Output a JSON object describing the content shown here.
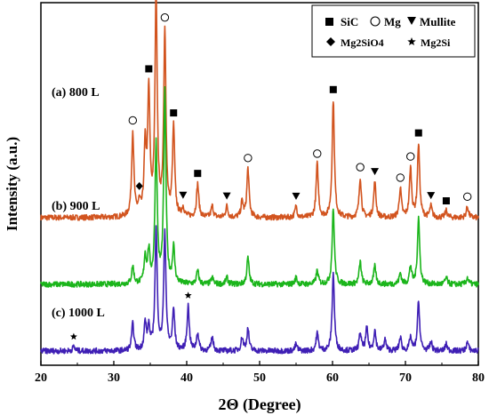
{
  "chart_data": {
    "type": "line",
    "title": "",
    "xlabel": "2Θ (Degree)",
    "ylabel": "Intensity (a.u.)",
    "xlim": [
      20,
      80
    ],
    "xticks": [
      20,
      30,
      40,
      50,
      60,
      70,
      80
    ],
    "y_ticks_shown": false,
    "grid": false,
    "legend": {
      "placement": "top-right",
      "entries": [
        {
          "symbol": "square",
          "name": "SiC"
        },
        {
          "symbol": "circle",
          "name": "Mg"
        },
        {
          "symbol": "triangle-down",
          "name": "Mullite"
        },
        {
          "symbol": "diamond",
          "name": "Mg2SiO4"
        },
        {
          "symbol": "star",
          "name": "Mg2Si"
        }
      ]
    },
    "series": [
      {
        "name": "(a) 800 L",
        "color": "#d2541f",
        "baseline": 0.6,
        "peaks": [
          {
            "x": 32.6,
            "h": 0.38
          },
          {
            "x": 33.5,
            "h": 0.05
          },
          {
            "x": 34.3,
            "h": 0.3
          },
          {
            "x": 34.8,
            "h": 0.55
          },
          {
            "x": 35.8,
            "h": 1.0
          },
          {
            "x": 37.0,
            "h": 0.82
          },
          {
            "x": 38.2,
            "h": 0.4
          },
          {
            "x": 39.5,
            "h": 0.04
          },
          {
            "x": 41.5,
            "h": 0.15
          },
          {
            "x": 43.5,
            "h": 0.05
          },
          {
            "x": 45.5,
            "h": 0.05
          },
          {
            "x": 47.6,
            "h": 0.07
          },
          {
            "x": 48.4,
            "h": 0.22
          },
          {
            "x": 55.0,
            "h": 0.05
          },
          {
            "x": 57.9,
            "h": 0.24
          },
          {
            "x": 60.1,
            "h": 0.53
          },
          {
            "x": 63.8,
            "h": 0.18
          },
          {
            "x": 65.8,
            "h": 0.16
          },
          {
            "x": 69.3,
            "h": 0.13
          },
          {
            "x": 70.7,
            "h": 0.22
          },
          {
            "x": 71.8,
            "h": 0.33
          },
          {
            "x": 73.5,
            "h": 0.05
          },
          {
            "x": 75.6,
            "h": 0.03
          },
          {
            "x": 78.5,
            "h": 0.05
          }
        ]
      },
      {
        "name": "(b) 900 L",
        "color": "#1bb51b",
        "baseline": 0.3,
        "peaks": [
          {
            "x": 32.6,
            "h": 0.08
          },
          {
            "x": 34.3,
            "h": 0.12
          },
          {
            "x": 34.8,
            "h": 0.14
          },
          {
            "x": 35.8,
            "h": 0.63
          },
          {
            "x": 37.0,
            "h": 0.86
          },
          {
            "x": 38.2,
            "h": 0.16
          },
          {
            "x": 41.5,
            "h": 0.06
          },
          {
            "x": 43.5,
            "h": 0.03
          },
          {
            "x": 45.5,
            "h": 0.03
          },
          {
            "x": 48.4,
            "h": 0.12
          },
          {
            "x": 55.0,
            "h": 0.03
          },
          {
            "x": 57.9,
            "h": 0.06
          },
          {
            "x": 60.1,
            "h": 0.34
          },
          {
            "x": 63.8,
            "h": 0.1
          },
          {
            "x": 65.8,
            "h": 0.08
          },
          {
            "x": 69.3,
            "h": 0.05
          },
          {
            "x": 70.7,
            "h": 0.08
          },
          {
            "x": 71.8,
            "h": 0.3
          },
          {
            "x": 75.6,
            "h": 0.03
          },
          {
            "x": 78.5,
            "h": 0.03
          }
        ]
      },
      {
        "name": "(c) 1000 L",
        "color": "#3f1fb5",
        "baseline": 0.0,
        "peaks": [
          {
            "x": 24.5,
            "h": 0.02
          },
          {
            "x": 32.6,
            "h": 0.12
          },
          {
            "x": 34.3,
            "h": 0.12
          },
          {
            "x": 34.8,
            "h": 0.1
          },
          {
            "x": 35.8,
            "h": 0.54
          },
          {
            "x": 37.0,
            "h": 0.53
          },
          {
            "x": 38.2,
            "h": 0.18
          },
          {
            "x": 40.2,
            "h": 0.2
          },
          {
            "x": 41.5,
            "h": 0.08
          },
          {
            "x": 43.5,
            "h": 0.06
          },
          {
            "x": 47.6,
            "h": 0.06
          },
          {
            "x": 48.4,
            "h": 0.1
          },
          {
            "x": 55.0,
            "h": 0.03
          },
          {
            "x": 57.9,
            "h": 0.08
          },
          {
            "x": 60.1,
            "h": 0.35
          },
          {
            "x": 63.8,
            "h": 0.08
          },
          {
            "x": 64.7,
            "h": 0.1
          },
          {
            "x": 65.8,
            "h": 0.09
          },
          {
            "x": 67.2,
            "h": 0.05
          },
          {
            "x": 69.3,
            "h": 0.06
          },
          {
            "x": 70.7,
            "h": 0.06
          },
          {
            "x": 71.8,
            "h": 0.22
          },
          {
            "x": 73.5,
            "h": 0.04
          },
          {
            "x": 75.6,
            "h": 0.03
          },
          {
            "x": 78.5,
            "h": 0.04
          }
        ]
      }
    ],
    "markers": [
      {
        "symbol": "circle",
        "x": 32.6,
        "series": 0
      },
      {
        "symbol": "diamond",
        "x": 33.5,
        "series": 0
      },
      {
        "symbol": "square",
        "x": 34.8,
        "series": 0
      },
      {
        "symbol": "square",
        "x": 35.8,
        "series": 0
      },
      {
        "symbol": "circle",
        "x": 37.0,
        "series": 0
      },
      {
        "symbol": "square",
        "x": 38.2,
        "series": 0
      },
      {
        "symbol": "triangle-down",
        "x": 39.5,
        "series": 0
      },
      {
        "symbol": "square",
        "x": 41.5,
        "series": 0
      },
      {
        "symbol": "triangle-down",
        "x": 45.5,
        "series": 0
      },
      {
        "symbol": "circle",
        "x": 48.4,
        "series": 0
      },
      {
        "symbol": "triangle-down",
        "x": 55.0,
        "series": 0
      },
      {
        "symbol": "circle",
        "x": 57.9,
        "series": 0
      },
      {
        "symbol": "square",
        "x": 60.1,
        "series": 0
      },
      {
        "symbol": "circle",
        "x": 63.8,
        "series": 0
      },
      {
        "symbol": "triangle-down",
        "x": 65.8,
        "series": 0
      },
      {
        "symbol": "circle",
        "x": 69.3,
        "series": 0
      },
      {
        "symbol": "circle",
        "x": 70.7,
        "series": 0
      },
      {
        "symbol": "square",
        "x": 71.8,
        "series": 0
      },
      {
        "symbol": "triangle-down",
        "x": 73.5,
        "series": 0
      },
      {
        "symbol": "square",
        "x": 75.6,
        "series": 0
      },
      {
        "symbol": "circle",
        "x": 78.5,
        "series": 0
      },
      {
        "symbol": "star",
        "x": 24.5,
        "series": 2
      },
      {
        "symbol": "star",
        "x": 40.2,
        "series": 2
      }
    ]
  }
}
